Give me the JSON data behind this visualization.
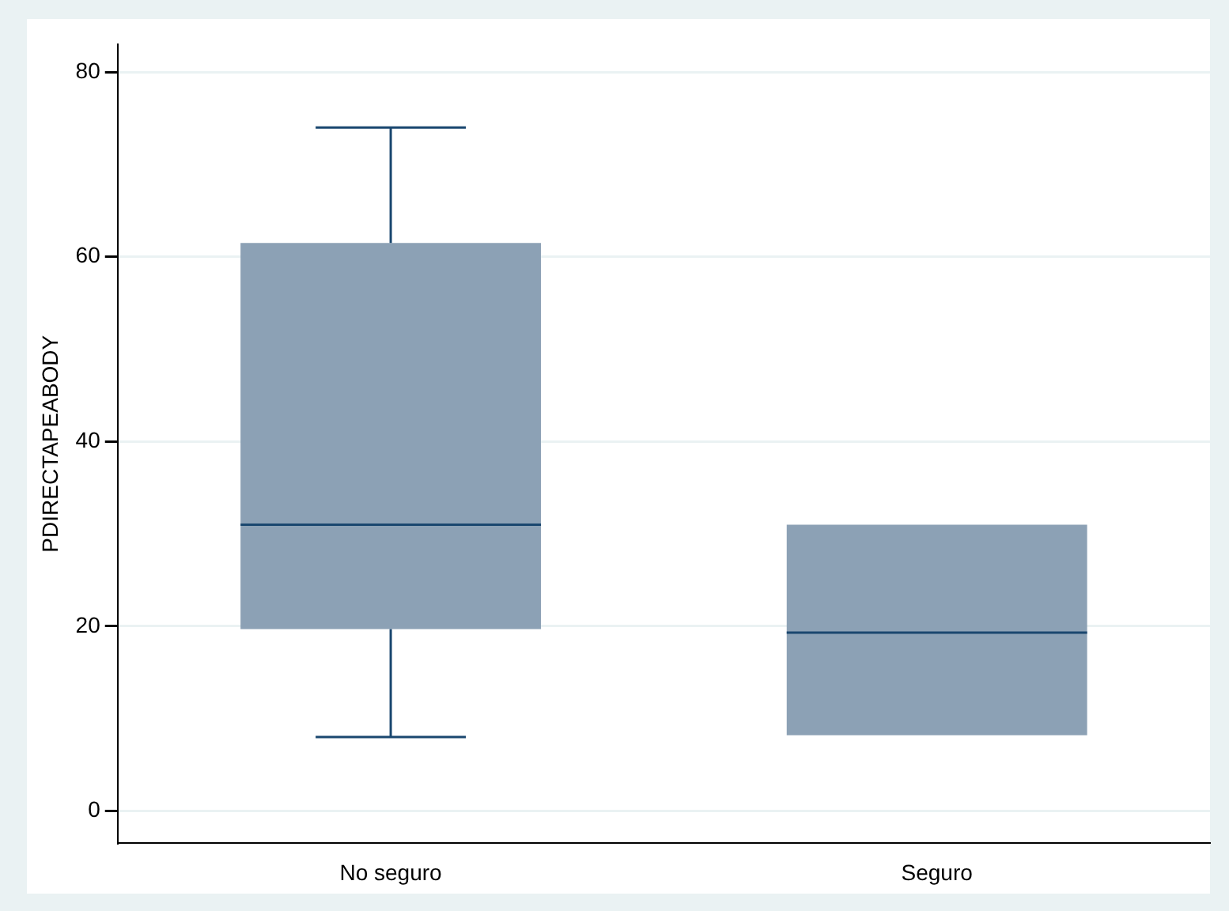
{
  "chart_data": {
    "type": "box",
    "ylabel": "PDIRECTAPEABODY",
    "categories": [
      "No seguro",
      "Seguro"
    ],
    "boxes": [
      {
        "low": 8,
        "q1": 19.7,
        "median": 31,
        "q3": 61.5,
        "high": 74
      },
      {
        "low": 8.2,
        "q1": 8.2,
        "median": 19.3,
        "q3": 31,
        "high": 31
      }
    ],
    "color": "#8ca1b5",
    "ylim": [
      -3.5,
      83
    ],
    "yticks": [
      0,
      20,
      40,
      60,
      80
    ],
    "grid": "y",
    "legend": false
  }
}
